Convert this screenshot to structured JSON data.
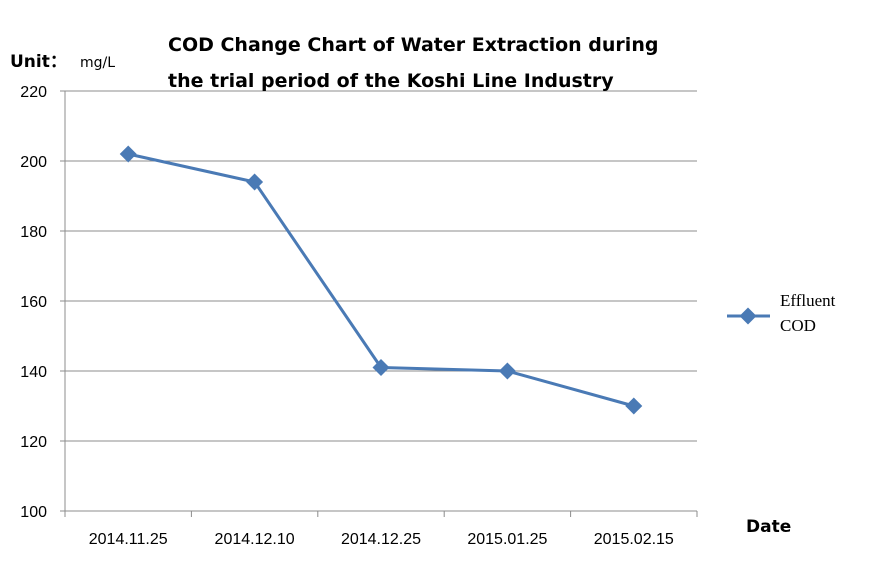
{
  "chart_data": {
    "type": "line",
    "title_lines": [
      "COD Change Chart of Water Extraction during",
      "the trial period of the Koshi Line Industry"
    ],
    "unit_label": "Unit：",
    "unit_value": "mg/L",
    "xlabel": "Date",
    "categories": [
      "2014.11.25",
      "2014.12.10",
      "2014.12.25",
      "2015.01.25",
      "2015.02.15"
    ],
    "series": [
      {
        "legend_lines": [
          "Effluent",
          "COD"
        ],
        "color": "#4a7ab5",
        "values": [
          202,
          194,
          141,
          140,
          130
        ]
      }
    ],
    "ylim": [
      100,
      220
    ],
    "yticks": [
      100,
      120,
      140,
      160,
      180,
      200,
      220
    ],
    "grid": true,
    "legend_position": "right"
  }
}
